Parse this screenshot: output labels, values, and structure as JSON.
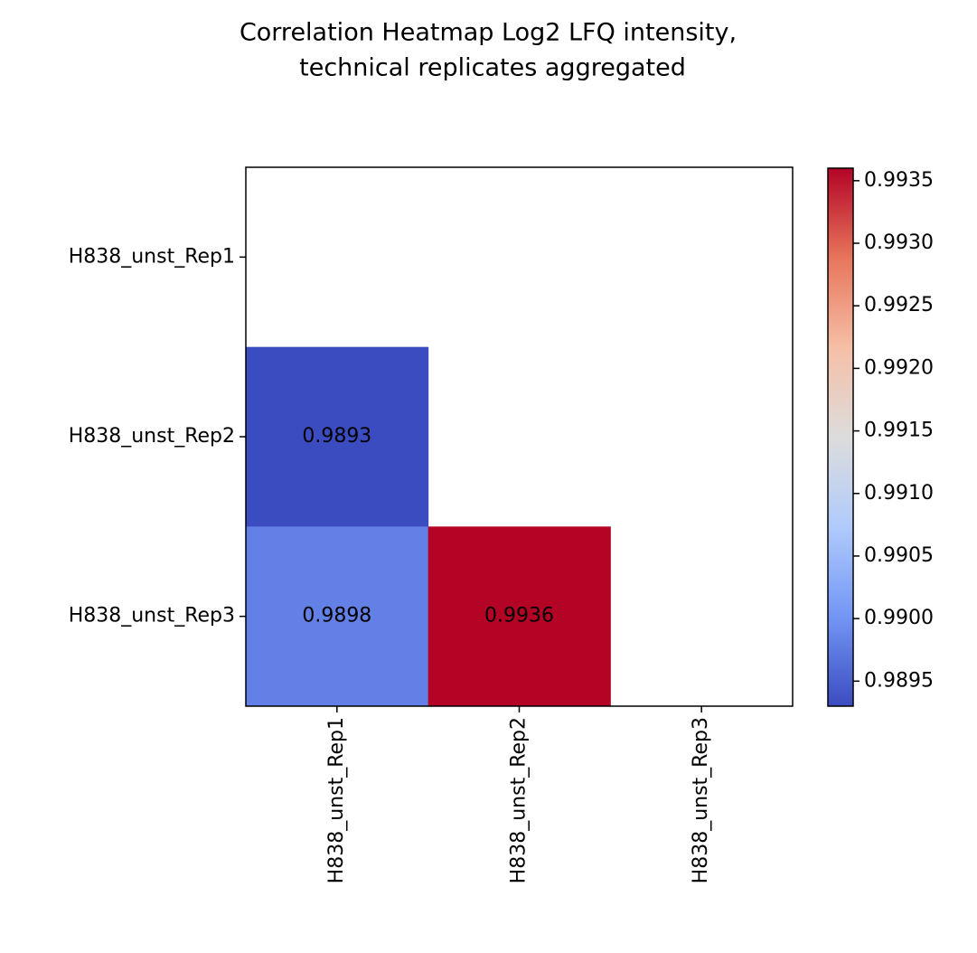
{
  "chart_data": {
    "type": "heatmap",
    "title": [
      "Correlation Heatmap Log2 LFQ intensity,",
      "technical replicates aggregated"
    ],
    "x": [
      "H838_unst_Rep1",
      "H838_unst_Rep2",
      "H838_unst_Rep3"
    ],
    "y": [
      "H838_unst_Rep1",
      "H838_unst_Rep2",
      "H838_unst_Rep3"
    ],
    "values": [
      [
        null,
        null,
        null
      ],
      [
        0.9893,
        null,
        null
      ],
      [
        0.9898,
        0.9936,
        null
      ]
    ],
    "clim": [
      0.9893,
      0.9936
    ],
    "cticks": [
      0.9895,
      {
        "value": 0.99,
        "label": "0.9900"
      },
      0.9905,
      {
        "value": 0.991,
        "label": "0.9910"
      },
      0.9915,
      {
        "value": 0.992,
        "label": "0.9920"
      },
      0.9925,
      {
        "value": 0.993,
        "label": "0.9930"
      },
      0.9935
    ],
    "colormap": [
      "#3b4cc0",
      "#7396f5",
      "#b0cbfc",
      "#dddcdc",
      "#f6bfa6",
      "#e7755b",
      "#b40426"
    ]
  }
}
